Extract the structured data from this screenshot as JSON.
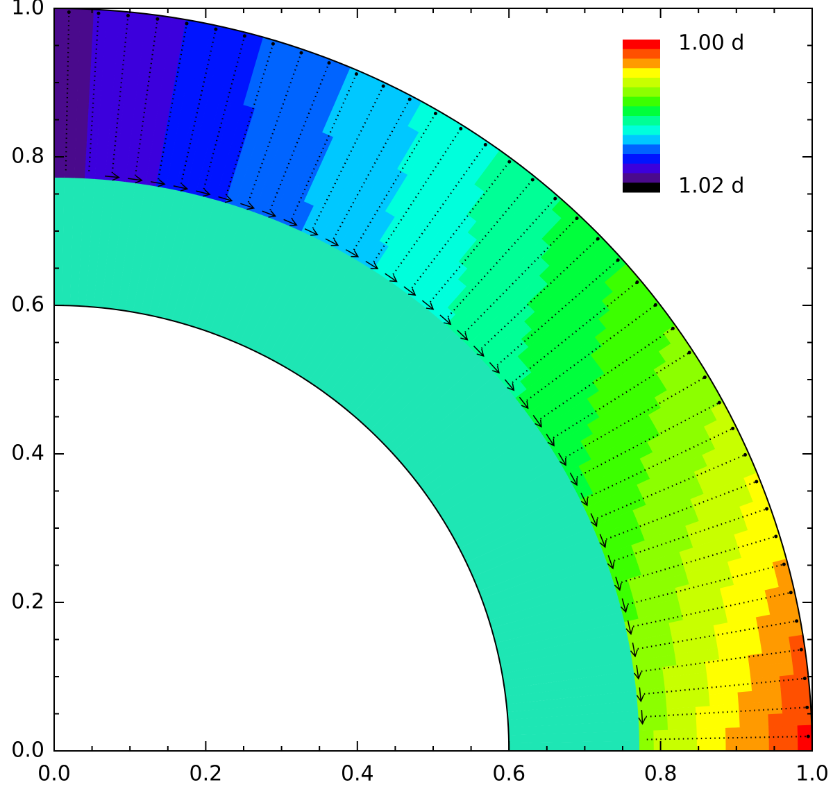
{
  "chart_data": {
    "type": "contour",
    "xlim": [
      0,
      1
    ],
    "ylim": [
      0,
      1
    ],
    "xticks": [
      {
        "value": 0,
        "label": "0.0"
      },
      {
        "value": 0.2,
        "label": "0.2"
      },
      {
        "value": 0.4,
        "label": "0.4"
      },
      {
        "value": 0.6,
        "label": "0.6"
      },
      {
        "value": 0.8,
        "label": "0.8"
      },
      {
        "value": 1,
        "label": "1.0"
      }
    ],
    "yticks": [
      {
        "value": 0,
        "label": "0.0"
      },
      {
        "value": 0.2,
        "label": "0.2"
      },
      {
        "value": 0.4,
        "label": "0.4"
      },
      {
        "value": 0.6,
        "label": "0.6"
      },
      {
        "value": 0.8,
        "label": "0.8"
      },
      {
        "value": 1,
        "label": "1.0"
      }
    ],
    "inner_radius": 0.6,
    "outer_radius": 1.0,
    "colorbar": {
      "colors": [
        "#ff0000",
        "#ff5000",
        "#ff9a00",
        "#ffff00",
        "#c8ff00",
        "#8cff00",
        "#3cff00",
        "#00ff3c",
        "#00ff96",
        "#00ffdc",
        "#00c8ff",
        "#0064ff",
        "#0014ff",
        "#3c00dc",
        "#4a0a8c",
        "#000000"
      ],
      "ticks": [
        {
          "value": 1.0,
          "label": "1.00 d"
        },
        {
          "value": 1.02,
          "label": "1.02 d"
        }
      ]
    }
  }
}
